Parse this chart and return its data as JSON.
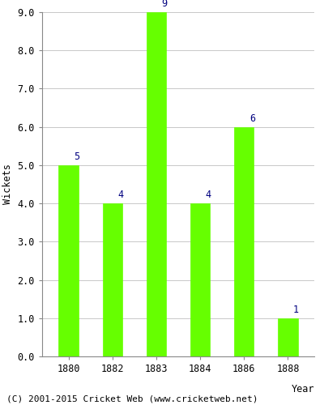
{
  "years": [
    "1880",
    "1882",
    "1883",
    "1884",
    "1886",
    "1888"
  ],
  "wickets": [
    5,
    4,
    9,
    4,
    6,
    1
  ],
  "bar_color": "#66ff00",
  "bar_edgecolor": "#66ff00",
  "label_color": "#000080",
  "xlabel": "Year",
  "ylabel": "Wickets",
  "ylim": [
    0,
    9.0
  ],
  "yticks": [
    0.0,
    1.0,
    2.0,
    3.0,
    4.0,
    5.0,
    6.0,
    7.0,
    8.0,
    9.0
  ],
  "grid_color": "#c8c8c8",
  "background_color": "#ffffff",
  "footer": "(C) 2001-2015 Cricket Web (www.cricketweb.net)",
  "label_fontsize": 8.5,
  "axis_fontsize": 8.5,
  "footer_fontsize": 8.0,
  "bar_width": 0.45
}
